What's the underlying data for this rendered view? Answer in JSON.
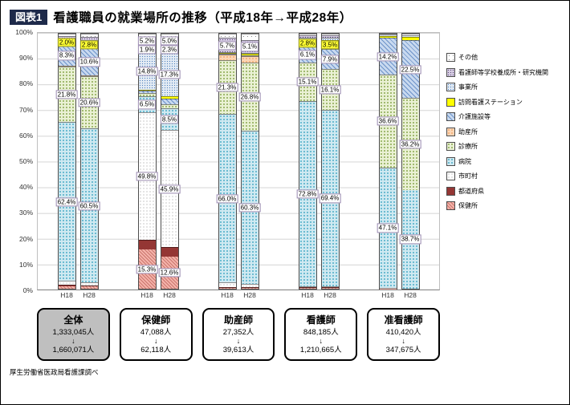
{
  "header": {
    "badge": "図表1",
    "title": "看護職員の就業場所の推移（平成18年→平成28年）"
  },
  "source_note": "厚生労働省医政局看護課調べ",
  "summary": [
    {
      "name": "全体",
      "from": "1,333,045人",
      "arrow": "↓",
      "to": "1,660,071人"
    },
    {
      "name": "保健師",
      "from": "47,088人",
      "arrow": "↓",
      "to": "62,118人"
    },
    {
      "name": "助産師",
      "from": "27,352人",
      "arrow": "↓",
      "to": "39,613人"
    },
    {
      "name": "看護師",
      "from": "848,185人",
      "arrow": "↓",
      "to": "1,210,665人"
    },
    {
      "name": "准看護師",
      "from": "410,420人",
      "arrow": "↓",
      "to": "347,675人"
    }
  ],
  "chart_data": {
    "type": "bar",
    "subtype": "stacked-100-percent",
    "title": "看護職員の就業場所の推移（平成18年→平成28年）",
    "xlabel": "",
    "ylabel": "",
    "ylim": [
      0,
      100
    ],
    "grid": true,
    "legend_position": "right",
    "yticks": [
      "0%",
      "10%",
      "20%",
      "30%",
      "40%",
      "50%",
      "60%",
      "70%",
      "80%",
      "90%",
      "100%"
    ],
    "categories": [
      "保健所",
      "都道府県",
      "市町村",
      "病院",
      "診療所",
      "助産所",
      "介護施設等",
      "訪問看護ステーション",
      "事業所",
      "看護師等学校養成所・研究機関",
      "その他"
    ],
    "legend_order": [
      "その他",
      "看護師等学校養成所・研究機関",
      "事業所",
      "訪問看護ステーション",
      "介護施設等",
      "助産所",
      "診療所",
      "病院",
      "市町村",
      "都道府県",
      "保健所"
    ],
    "colors": [
      "#f4b3aa",
      "#943634",
      "#ffffff",
      "#cfe9f1",
      "#eaf1d4",
      "#fbd5b5",
      "#c8d9ef",
      "#ffff00",
      "#e3ebf4",
      "#d6cde3",
      "#ffffff"
    ],
    "badge_color": "#1e2a4a",
    "groups": [
      {
        "name": "全体",
        "bars": [
          {
            "x": "H18",
            "values": [
              1.0,
              0.5,
              1.5,
              62.4,
              21.8,
              0.2,
              8.3,
              2.0,
              0.5,
              1.0,
              0.8
            ],
            "labels": [
              null,
              null,
              null,
              "62.4%",
              "21.8%",
              null,
              "8.3%",
              {
                "text": "2.0%",
                "bg": "yellow"
              },
              null,
              null,
              null
            ]
          },
          {
            "x": "H28",
            "values": [
              0.8,
              0.4,
              1.2,
              60.5,
              20.6,
              0.2,
              10.6,
              2.8,
              0.5,
              1.0,
              1.4
            ],
            "labels": [
              null,
              null,
              null,
              "60.5%",
              "20.6%",
              null,
              "10.6%",
              {
                "text": "2.8%",
                "bg": "yellow"
              },
              null,
              null,
              null
            ]
          }
        ]
      },
      {
        "name": "保健師",
        "bars": [
          {
            "x": "H18",
            "values": [
              15.3,
              4.0,
              49.8,
              6.5,
              1.0,
              0,
              1.0,
              0.5,
              14.8,
              1.9,
              5.2
            ],
            "labels": [
              "15.3%",
              null,
              "49.8%",
              "6.5%",
              null,
              null,
              null,
              null,
              "14.8%",
              "1.9%",
              "5.2%"
            ]
          },
          {
            "x": "H28",
            "values": [
              12.6,
              3.7,
              45.9,
              8.5,
              1.5,
              0,
              2.2,
              1.0,
              17.3,
              2.3,
              5.0
            ],
            "labels": [
              "12.6%",
              null,
              "45.9%",
              "8.5%",
              null,
              null,
              null,
              null,
              "17.3%",
              "2.3%",
              "5.0%"
            ]
          }
        ]
      },
      {
        "name": "助産師",
        "bars": [
          {
            "x": "H18",
            "values": [
              0.3,
              0.2,
              2.0,
              66.0,
              21.3,
              2.0,
              0.3,
              0.3,
              0.2,
              5.7,
              1.7
            ],
            "labels": [
              null,
              null,
              null,
              "66.0%",
              "21.3%",
              null,
              null,
              null,
              null,
              "5.7%",
              null
            ]
          },
          {
            "x": "H28",
            "values": [
              0.2,
              0.1,
              1.5,
              60.3,
              26.8,
              2.5,
              0.3,
              0.5,
              0.2,
              5.1,
              2.5
            ],
            "labels": [
              null,
              null,
              null,
              "60.3%",
              "26.8%",
              null,
              null,
              null,
              null,
              "5.1%",
              null
            ]
          }
        ]
      },
      {
        "name": "看護師",
        "bars": [
          {
            "x": "H18",
            "values": [
              0.2,
              0.2,
              0.5,
              72.8,
              15.1,
              0,
              6.1,
              2.8,
              0.8,
              1.0,
              0.5
            ],
            "labels": [
              null,
              null,
              null,
              "72.8%",
              "15.1%",
              null,
              "6.1%",
              {
                "text": "2.8%",
                "bg": "yellow"
              },
              null,
              null,
              null
            ]
          },
          {
            "x": "H28",
            "values": [
              0.2,
              0.1,
              0.4,
              69.4,
              16.1,
              0,
              7.9,
              3.5,
              0.8,
              1.0,
              0.6
            ],
            "labels": [
              null,
              null,
              null,
              "69.4%",
              "16.1%",
              null,
              "7.9%",
              {
                "text": "3.5%",
                "bg": "yellow"
              },
              null,
              null,
              null
            ]
          }
        ]
      },
      {
        "name": "准看護師",
        "bars": [
          {
            "x": "H18",
            "values": [
              0.1,
              0,
              0.3,
              47.1,
              36.6,
              0,
              14.2,
              0.7,
              0.7,
              0,
              0.3
            ],
            "labels": [
              null,
              null,
              null,
              "47.1%",
              "36.6%",
              null,
              "14.2%",
              null,
              null,
              null,
              null
            ]
          },
          {
            "x": "H28",
            "values": [
              0,
              0,
              0,
              38.7,
              36.2,
              0,
              22.5,
              1.2,
              0.7,
              0,
              0.7
            ],
            "labels": [
              null,
              null,
              null,
              "38.7%",
              "36.2%",
              null,
              "22.5%",
              null,
              null,
              null,
              null
            ]
          }
        ]
      }
    ]
  }
}
